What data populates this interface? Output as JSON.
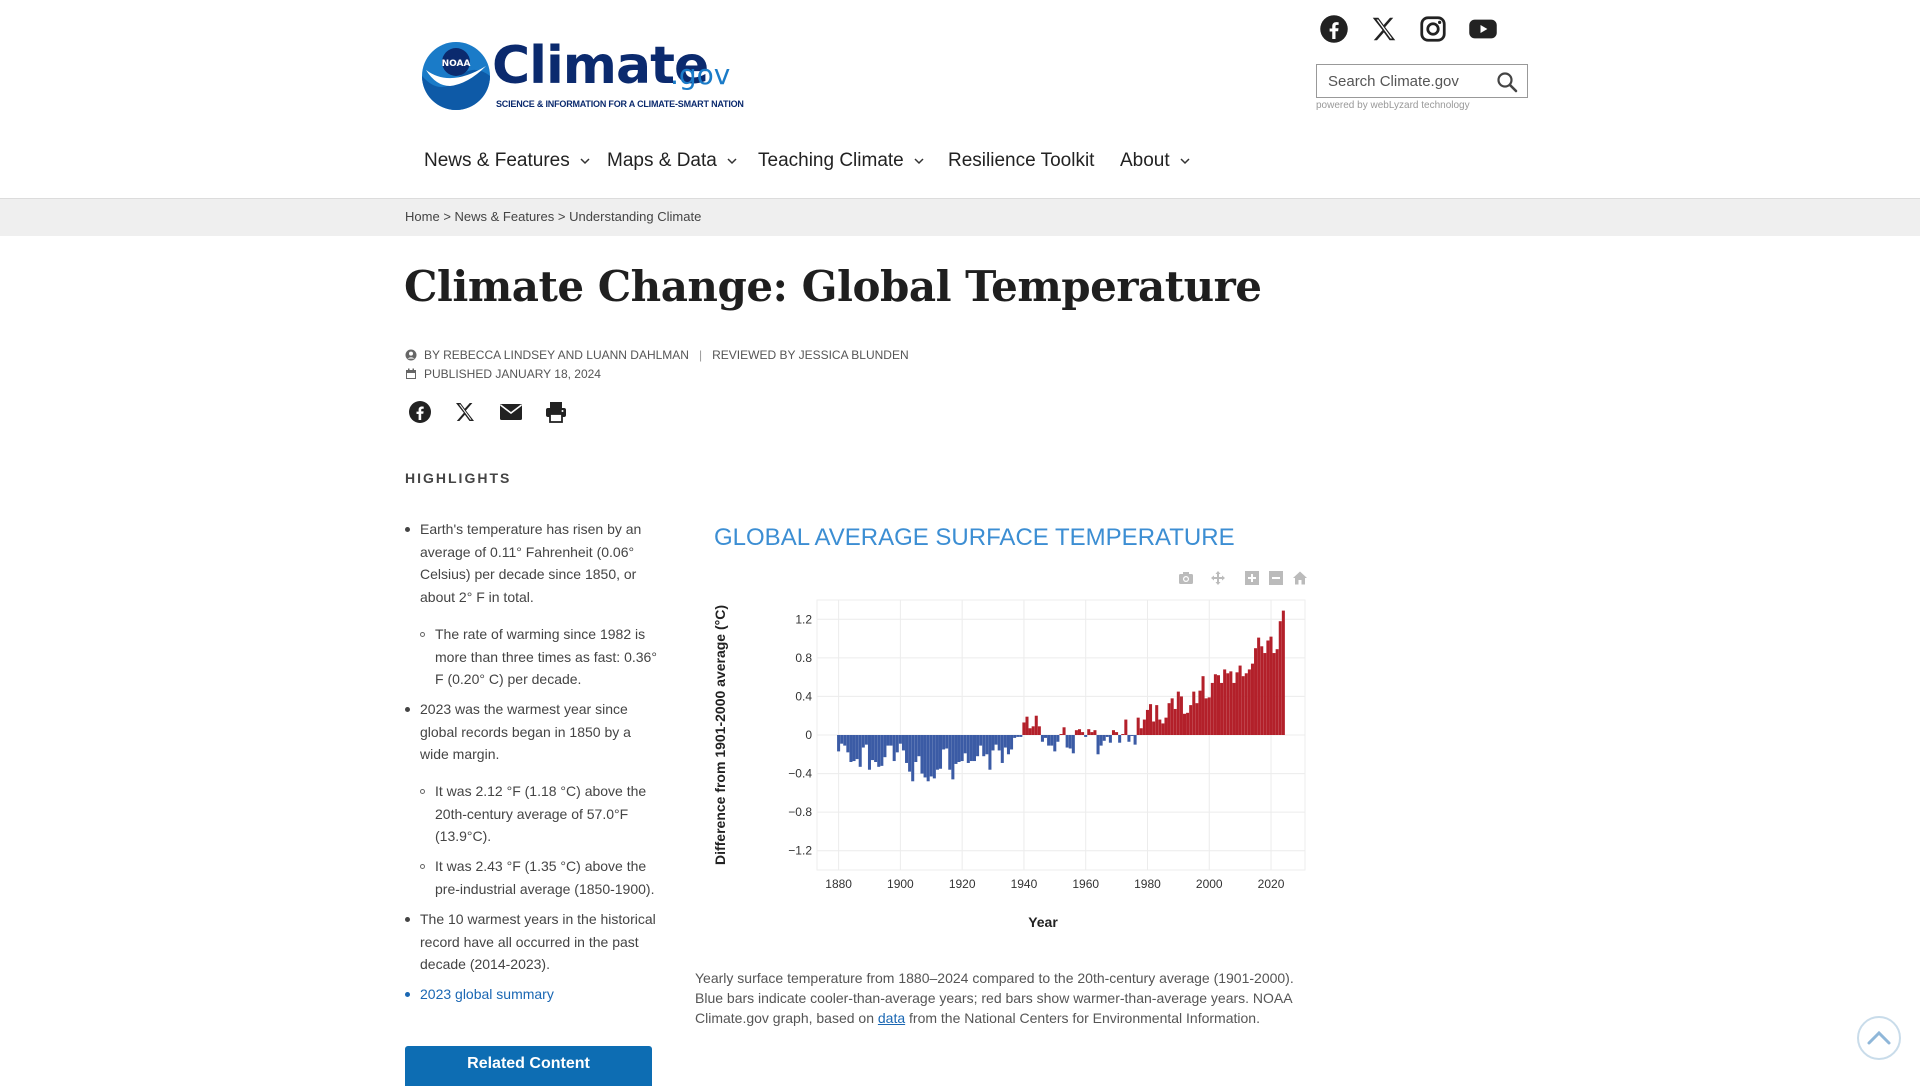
{
  "header": {
    "logo_badge": "NOAA",
    "logo_word": "Climate",
    "logo_tld": ".gov",
    "logo_tagline": "SCIENCE & INFORMATION FOR A CLIMATE-SMART NATION",
    "social_icons": [
      "facebook-icon",
      "x-icon",
      "instagram-icon",
      "youtube-icon"
    ],
    "search_placeholder": "Search Climate.gov",
    "powered_by": "powered by webLyzard technology"
  },
  "nav": {
    "items": [
      {
        "label": "News & Features",
        "dropdown": true
      },
      {
        "label": "Maps & Data",
        "dropdown": true
      },
      {
        "label": "Teaching Climate",
        "dropdown": true
      },
      {
        "label": "Resilience Toolkit",
        "dropdown": false
      },
      {
        "label": "About",
        "dropdown": true
      }
    ]
  },
  "breadcrumb": {
    "items": [
      "Home",
      "News & Features",
      "Understanding Climate"
    ],
    "separator": ">"
  },
  "article": {
    "title": "Climate Change: Global Temperature",
    "byline": "BY REBECCA LINDSEY AND LUANN DAHLMAN",
    "byline_sep": "|",
    "reviewed": "REVIEWED BY JESSICA BLUNDEN",
    "published": "PUBLISHED JANUARY 18, 2024",
    "share_icons": [
      "facebook-icon",
      "x-icon",
      "email-icon",
      "print-icon"
    ]
  },
  "highlights": {
    "heading": "HIGHLIGHTS",
    "items": [
      {
        "text": "Earth's temperature has risen by an average of 0.11° Fahrenheit (0.06° Celsius) per decade since 1850, or about 2° F in total.",
        "level": 1
      },
      {
        "text": "The rate of warming since 1982 is more than three times as fast: 0.36° F (0.20° C) per decade.",
        "level": 2
      },
      {
        "text": "2023 was the warmest year since global records began in 1850 by a wide margin.",
        "level": 1
      },
      {
        "text": "It was 2.12 °F (1.18 °C) above the 20th-century average of 57.0°F (13.9°C).",
        "level": 2
      },
      {
        "text": "It was 2.43 °F (1.35 °C) above the pre-industrial average (1850-1900).",
        "level": 2
      },
      {
        "text": "The 10 warmest years in the historical record have all occurred in the past decade (2014-2023).",
        "level": 1
      },
      {
        "text": "2023 global summary",
        "level": 1,
        "link": true
      }
    ],
    "related_button": "Related Content"
  },
  "chart_title": "GLOBAL AVERAGE SURFACE TEMPERATURE",
  "chart_tool_icons": [
    "camera-icon",
    "pan-icon",
    "zoom-in-icon",
    "zoom-out-icon",
    "home-icon"
  ],
  "chart_data": {
    "type": "bar",
    "title": "GLOBAL AVERAGE SURFACE TEMPERATURE",
    "xlabel": "Year",
    "ylabel": "Difference from 1901-2000 average (°C)",
    "xlim": [
      1873,
      1884
    ],
    "ylim": [
      -1.4,
      1.4
    ],
    "x_ticks": [
      1880,
      1900,
      1920,
      1940,
      1960,
      1980,
      2000,
      2020
    ],
    "y_ticks": [
      1.2,
      0.8,
      0.4,
      0,
      -0.4,
      -0.8,
      -1.2
    ],
    "y_tick_labels": [
      "1.2",
      "0.8",
      "0.4",
      "0",
      "−0.4",
      "−0.8",
      "−1.2"
    ],
    "grid": true,
    "colors": {
      "positive": "#b3202a",
      "negative": "#3b5ba5"
    },
    "x": [
      1880,
      1881,
      1882,
      1883,
      1884,
      1885,
      1886,
      1887,
      1888,
      1889,
      1890,
      1891,
      1892,
      1893,
      1894,
      1895,
      1896,
      1897,
      1898,
      1899,
      1900,
      1901,
      1902,
      1903,
      1904,
      1905,
      1906,
      1907,
      1908,
      1909,
      1910,
      1911,
      1912,
      1913,
      1914,
      1915,
      1916,
      1917,
      1918,
      1919,
      1920,
      1921,
      1922,
      1923,
      1924,
      1925,
      1926,
      1927,
      1928,
      1929,
      1930,
      1931,
      1932,
      1933,
      1934,
      1935,
      1936,
      1937,
      1938,
      1939,
      1940,
      1941,
      1942,
      1943,
      1944,
      1945,
      1946,
      1947,
      1948,
      1949,
      1950,
      1951,
      1952,
      1953,
      1954,
      1955,
      1956,
      1957,
      1958,
      1959,
      1960,
      1961,
      1962,
      1963,
      1964,
      1965,
      1966,
      1967,
      1968,
      1969,
      1970,
      1971,
      1972,
      1973,
      1974,
      1975,
      1976,
      1977,
      1978,
      1979,
      1980,
      1981,
      1982,
      1983,
      1984,
      1985,
      1986,
      1987,
      1988,
      1989,
      1990,
      1991,
      1992,
      1993,
      1994,
      1995,
      1996,
      1997,
      1998,
      1999,
      2000,
      2001,
      2002,
      2003,
      2004,
      2005,
      2006,
      2007,
      2008,
      2009,
      2010,
      2011,
      2012,
      2013,
      2014,
      2015,
      2016,
      2017,
      2018,
      2019,
      2020,
      2021,
      2022,
      2023,
      2024
    ],
    "values": [
      -0.17,
      -0.09,
      -0.11,
      -0.18,
      -0.28,
      -0.27,
      -0.25,
      -0.33,
      -0.13,
      -0.1,
      -0.36,
      -0.26,
      -0.28,
      -0.33,
      -0.32,
      -0.23,
      -0.11,
      -0.11,
      -0.27,
      -0.18,
      -0.09,
      -0.16,
      -0.29,
      -0.38,
      -0.48,
      -0.28,
      -0.22,
      -0.4,
      -0.44,
      -0.48,
      -0.43,
      -0.45,
      -0.36,
      -0.35,
      -0.15,
      -0.14,
      -0.36,
      -0.46,
      -0.3,
      -0.28,
      -0.27,
      -0.19,
      -0.29,
      -0.27,
      -0.27,
      -0.22,
      -0.11,
      -0.22,
      -0.2,
      -0.36,
      -0.16,
      -0.1,
      -0.16,
      -0.29,
      -0.13,
      -0.2,
      -0.15,
      -0.03,
      -0.02,
      -0.02,
      0.13,
      0.19,
      0.07,
      0.09,
      0.2,
      0.09,
      -0.07,
      -0.03,
      -0.11,
      -0.11,
      -0.17,
      -0.07,
      0.01,
      0.08,
      -0.13,
      -0.14,
      -0.19,
      0.05,
      0.06,
      0.03,
      -0.02,
      0.06,
      0.03,
      0.05,
      -0.2,
      -0.11,
      -0.06,
      -0.02,
      -0.08,
      0.05,
      0.03,
      -0.08,
      0.01,
      0.16,
      -0.07,
      -0.01,
      -0.1,
      0.18,
      0.07,
      0.16,
      0.26,
      0.32,
      0.14,
      0.31,
      0.16,
      0.12,
      0.18,
      0.33,
      0.38,
      0.27,
      0.45,
      0.4,
      0.22,
      0.23,
      0.31,
      0.45,
      0.33,
      0.46,
      0.61,
      0.38,
      0.39,
      0.54,
      0.63,
      0.62,
      0.54,
      0.68,
      0.64,
      0.66,
      0.54,
      0.65,
      0.72,
      0.61,
      0.64,
      0.68,
      0.74,
      0.9,
      1.01,
      0.92,
      0.85,
      0.98,
      1.02,
      0.85,
      0.89,
      1.18,
      1.29
    ]
  },
  "caption": {
    "before": "Yearly surface temperature from 1880–2024 compared to the 20th-century average (1901-2000). Blue bars indicate cooler-than-average years; red bars show warmer-than-average years. NOAA Climate.gov graph, based on ",
    "link": "data",
    "after": " from the National Centers for Environmental Information."
  }
}
